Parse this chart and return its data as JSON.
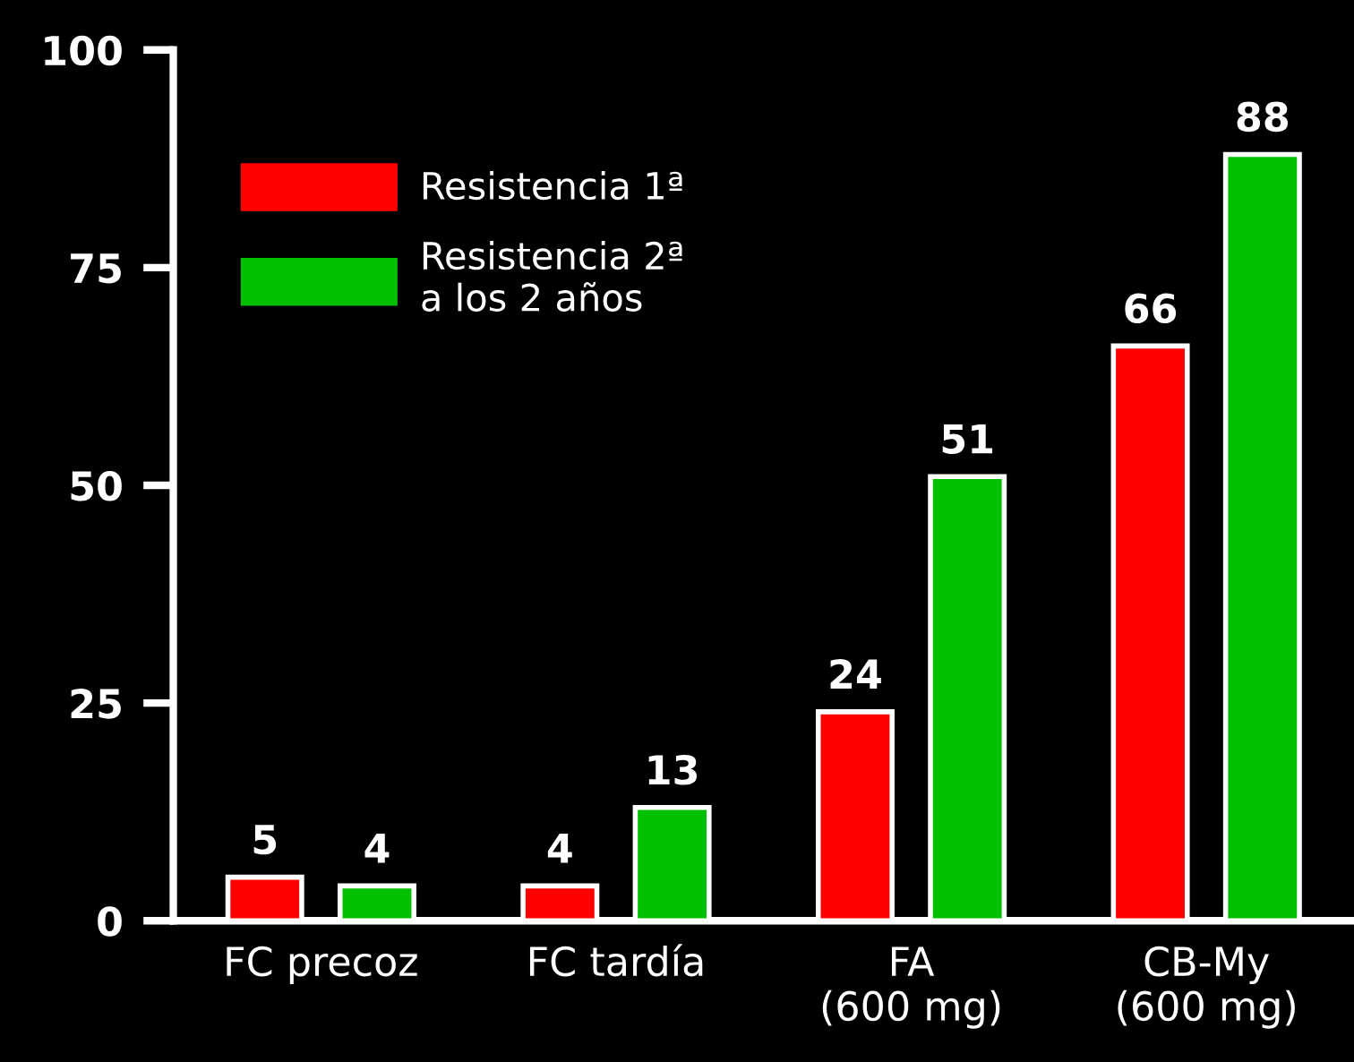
{
  "chart_data": {
    "type": "bar",
    "categories": [
      "FC precoz",
      "FC tardía",
      "FA\n(600 mg)",
      "CB-My\n(600 mg)"
    ],
    "series": [
      {
        "name": "Resistencia 1ª",
        "color": "#ff0000",
        "values": [
          5,
          4,
          24,
          66
        ]
      },
      {
        "name": "Resistencia 2ª\na los 2 años",
        "color": "#00c000",
        "values": [
          4,
          13,
          51,
          88
        ]
      }
    ],
    "ylim": [
      0,
      100
    ],
    "yticks": [
      0,
      25,
      50,
      75,
      100
    ],
    "grid": false,
    "legend": "top left",
    "data_labels": true
  }
}
